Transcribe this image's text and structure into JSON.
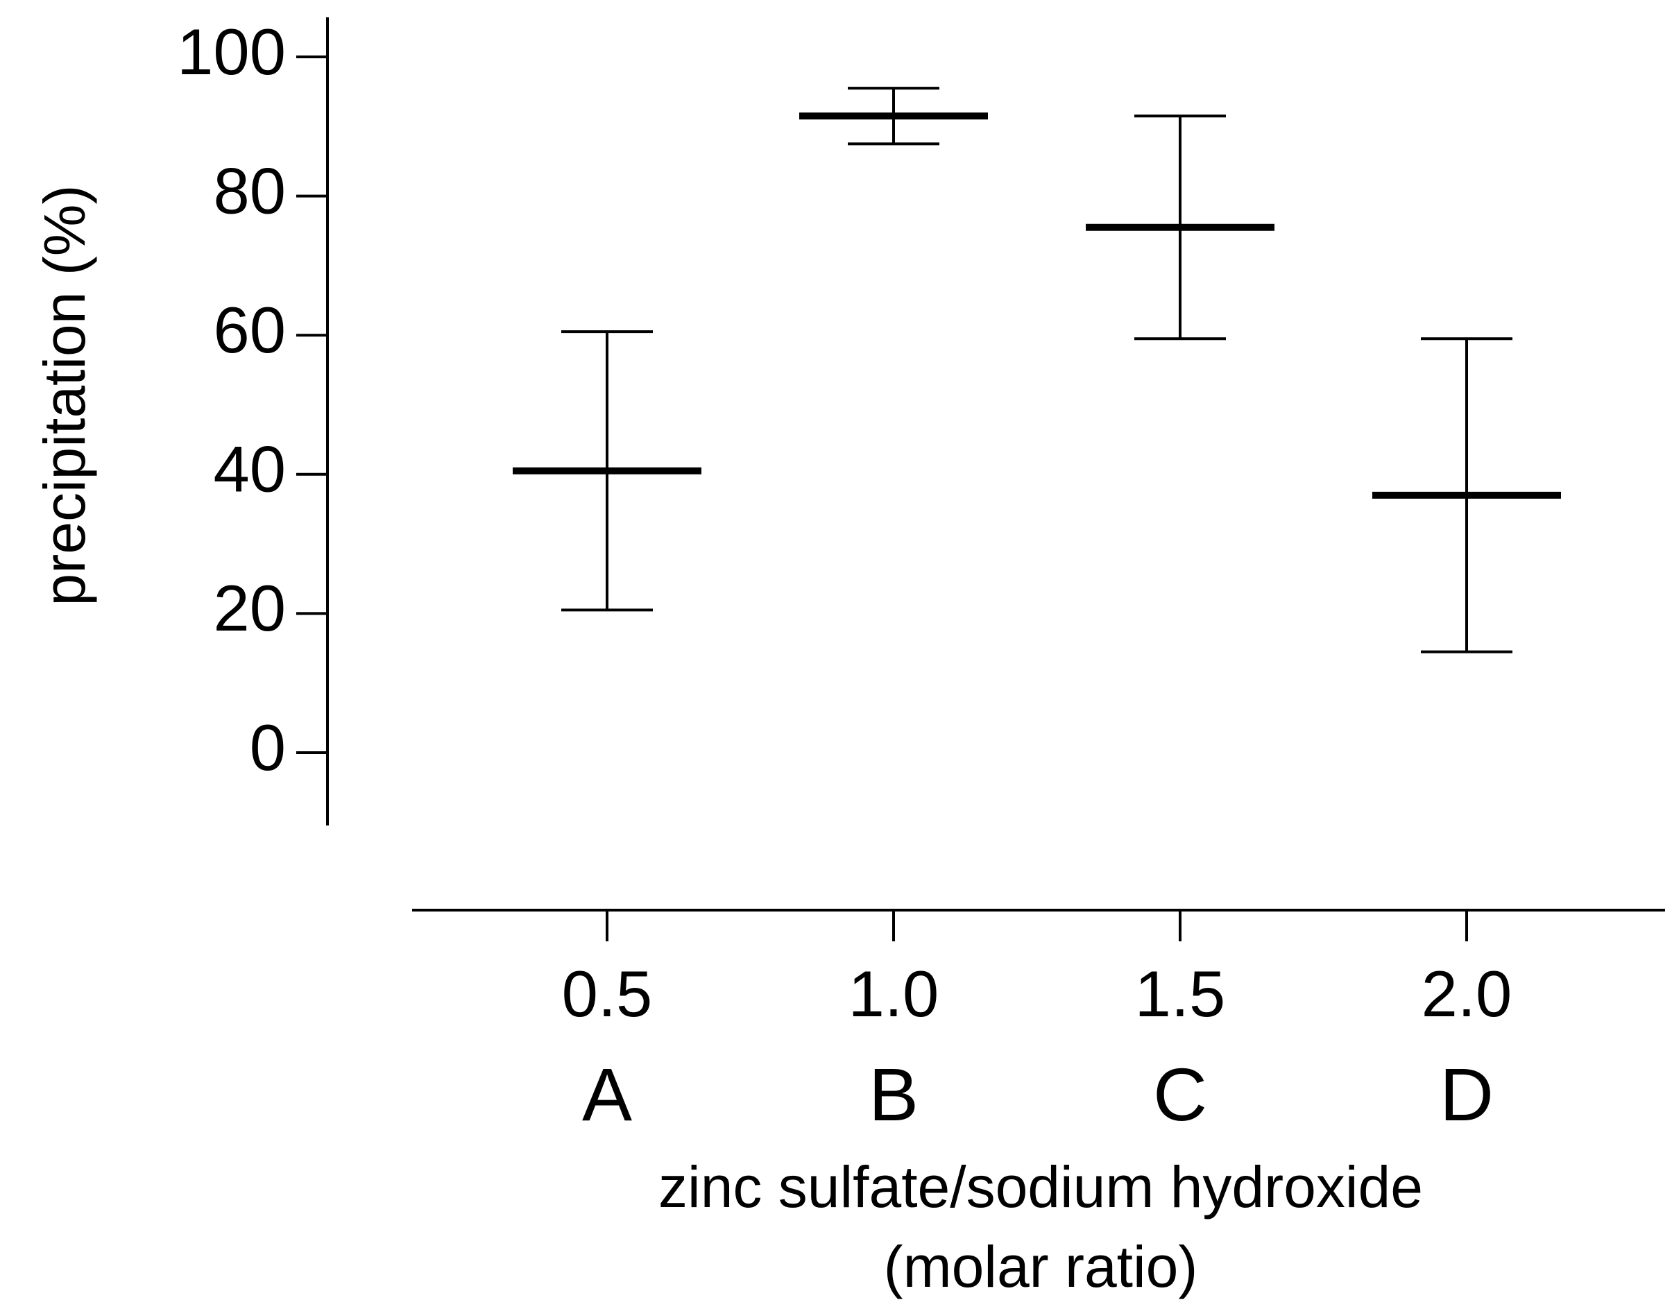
{
  "chart_data": {
    "type": "scatter",
    "subtype": "mean-with-error-bars",
    "title": "",
    "ylabel": "precipitation (%)",
    "xlabel_lines": [
      "zinc sulfate/sodium hydroxide",
      "(molar ratio)"
    ],
    "ylim": [
      -10,
      105
    ],
    "yticks": [
      0,
      20,
      40,
      60,
      80,
      100
    ],
    "categories": [
      "0.5",
      "1.0",
      "1.5",
      "2.0"
    ],
    "group_labels": [
      "A",
      "B",
      "C",
      "D"
    ],
    "points": [
      {
        "x": "0.5",
        "label": "A",
        "mean": 40.5,
        "lower": 20.5,
        "upper": 60.5
      },
      {
        "x": "1.0",
        "label": "B",
        "mean": 91.5,
        "lower": 87.5,
        "upper": 95.5
      },
      {
        "x": "1.5",
        "label": "C",
        "mean": 75.5,
        "lower": 59.5,
        "upper": 91.5
      },
      {
        "x": "2.0",
        "label": "D",
        "mean": 37.0,
        "lower": 14.5,
        "upper": 59.5
      }
    ],
    "grid": false,
    "legend": "none"
  }
}
